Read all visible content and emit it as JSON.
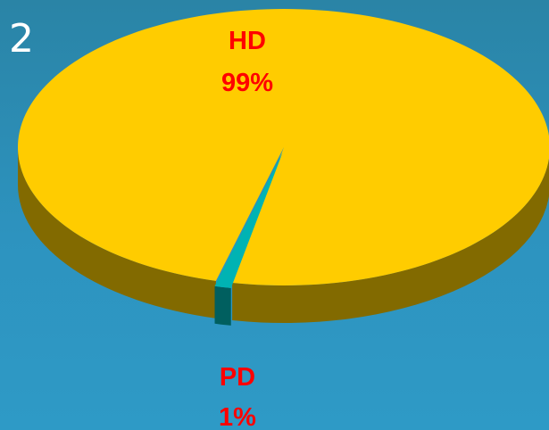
{
  "slide_number": "2",
  "chart_data": {
    "type": "pie",
    "style": "3d",
    "series": [
      {
        "categories": [
          "HD",
          "PD"
        ],
        "values": [
          99,
          1
        ],
        "labels": [
          "99%",
          "1%"
        ]
      }
    ],
    "colors": {
      "HD": "#ffcc00",
      "PD": "#00b3b3",
      "HD_side": "#826a00",
      "PD_side": "#005f5f",
      "label_text": "#ff0000"
    },
    "legend": "none",
    "title": ""
  }
}
